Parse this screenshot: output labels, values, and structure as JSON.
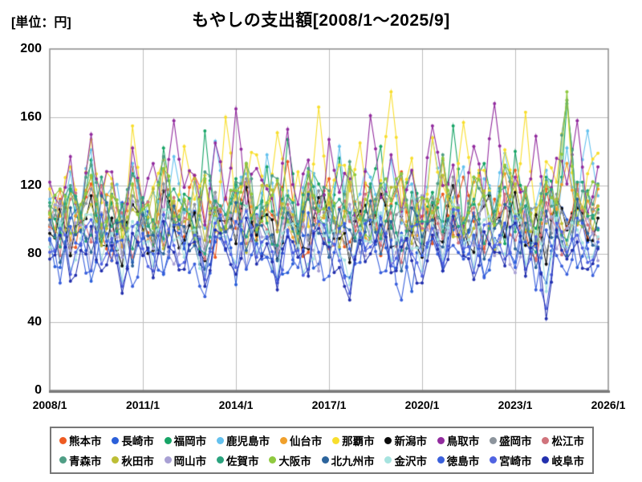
{
  "header": {
    "unit_label": "[単位：円]",
    "title": "もやしの支出額[2008/1～2025/9]"
  },
  "chart_data": {
    "type": "line",
    "title": "もやしの支出額[2008/1～2025/9]",
    "unit": "円",
    "xlabel": "",
    "ylabel": "支出額(円)",
    "ylim": [
      0,
      200
    ],
    "yticks": [
      0,
      40,
      80,
      120,
      160,
      200
    ],
    "xticks": [
      "2008/1",
      "2011/1",
      "2014/1",
      "2017/1",
      "2020/1",
      "2023/1",
      "2026/1"
    ],
    "x_start": "2008/1",
    "x_end": "2025/9",
    "x_axis_end": "2026/1",
    "x_step_months": 4,
    "grid": true,
    "legend_position": "bottom",
    "colors": {
      "grid": "#bdbdbd",
      "axis": "#8c8c8c",
      "baseline": "#7a7a7a"
    },
    "series": [
      {
        "name": "熊本市",
        "color": "#EE5B22",
        "values": [
          96,
          112,
          84,
          103,
          121,
          92,
          76,
          108,
          131,
          98,
          85,
          117,
          104,
          90,
          126,
          99,
          78,
          113,
          95,
          122,
          88,
          106,
          97,
          134,
          92,
          81,
          110,
          124,
          96,
          87,
          103,
          118,
          79,
          109,
          128,
          94,
          102,
          86,
          115,
          91,
          125,
          99,
          83,
          112,
          107,
          129,
          93,
          77,
          118,
          104,
          96,
          121,
          89,
          108
        ]
      },
      {
        "name": "長崎市",
        "color": "#2B5FD9",
        "values": [
          88,
          72,
          101,
          93,
          64,
          97,
          82,
          110,
          75,
          89,
          99,
          68,
          94,
          83,
          105,
          71,
          87,
          96,
          62,
          90,
          103,
          78,
          85,
          69,
          98,
          91,
          74,
          107,
          83,
          66,
          95,
          88,
          102,
          73,
          92,
          58,
          86,
          99,
          70,
          94,
          81,
          104,
          67,
          89,
          97,
          75,
          108,
          84,
          63,
          93,
          100,
          72,
          87,
          95
        ]
      },
      {
        "name": "福岡市",
        "color": "#17A466",
        "values": [
          104,
          92,
          118,
          99,
          135,
          87,
          110,
          96,
          127,
          103,
          84,
          142,
          97,
          115,
          89,
          152,
          101,
          93,
          124,
          108,
          86,
          131,
          98,
          147,
          94,
          112,
          121,
          88,
          136,
          100,
          90,
          119,
          143,
          95,
          107,
          128,
          84,
          116,
          99,
          155,
          92,
          109,
          133,
          97,
          86,
          140,
          113,
          95,
          125,
          102,
          168,
          98,
          117,
          106
        ]
      },
      {
        "name": "鹿児島市",
        "color": "#64C1EE",
        "values": [
          112,
          97,
          128,
          105,
          141,
          93,
          119,
          102,
          133,
          96,
          116,
          88,
          137,
          104,
          122,
          95,
          146,
          99,
          110,
          127,
          91,
          138,
          103,
          117,
          94,
          130,
          108,
          85,
          143,
          101,
          115,
          125,
          92,
          135,
          98,
          121,
          107,
          148,
          96,
          113,
          131,
          89,
          124,
          103,
          139,
          97,
          118,
          109,
          129,
          95,
          142,
          106,
          152,
          114
        ]
      },
      {
        "name": "仙台市",
        "color": "#F0A02C",
        "values": [
          101,
          117,
          88,
          109,
          125,
          95,
          113,
          84,
          120,
          103,
          92,
          129,
          99,
          111,
          86,
          123,
          105,
          94,
          116,
          132,
          90,
          107,
          121,
          97,
          83,
          126,
          102,
          114,
          93,
          130,
          100,
          87,
          119,
          108,
          124,
          91,
          112,
          98,
          135,
          104,
          89,
          122,
          110,
          96,
          127,
          101,
          115,
          85,
          120,
          106,
          133,
          97,
          111,
          118
        ]
      },
      {
        "name": "那覇市",
        "color": "#F8DE2D",
        "values": [
          118,
          102,
          131,
          95,
          147,
          110,
          124,
          90,
          155,
          107,
          119,
          135,
          98,
          143,
          112,
          126,
          93,
          160,
          105,
          121,
          138,
          99,
          151,
          114,
          128,
          96,
          166,
          109,
          132,
          117,
          145,
          101,
          123,
          175,
          108,
          136,
          94,
          148,
          120,
          104,
          157,
          111,
          129,
          97,
          141,
          116,
          163,
          103,
          134,
          122,
          170,
          106,
          127,
          139
        ]
      },
      {
        "name": "新潟市",
        "color": "#0A0A0A",
        "values": [
          92,
          106,
          79,
          98,
          114,
          85,
          101,
          73,
          109,
          94,
          82,
          117,
          96,
          88,
          104,
          76,
          111,
          99,
          86,
          119,
          91,
          103,
          77,
          107,
          95,
          83,
          113,
          100,
          89,
          75,
          105,
          97,
          115,
          84,
          102,
          93,
          78,
          110,
          87,
          120,
          96,
          81,
          108,
          99,
          90,
          116,
          85,
          103,
          74,
          112,
          94,
          107,
          88,
          101
        ]
      },
      {
        "name": "鳥取市",
        "color": "#922B9E",
        "values": [
          122,
          108,
          137,
          99,
          150,
          115,
          128,
          95,
          142,
          110,
          133,
          103,
          158,
          119,
          126,
          97,
          145,
          112,
          165,
          106,
          130,
          118,
          94,
          153,
          109,
          135,
          100,
          147,
          116,
          124,
          91,
          161,
          113,
          138,
          105,
          129,
          98,
          155,
          120,
          132,
          96,
          143,
          111,
          168,
          107,
          125,
          117,
          149,
          102,
          136,
          121,
          158,
          104,
          131
        ]
      },
      {
        "name": "盛岡市",
        "color": "#8C949C",
        "values": [
          97,
          111,
          85,
          104,
          118,
          92,
          107,
          80,
          114,
          98,
          87,
          121,
          101,
          93,
          109,
          83,
          116,
          103,
          90,
          124,
          95,
          108,
          82,
          112,
          99,
          88,
          117,
          105,
          94,
          79,
          110,
          102,
          119,
          89,
          106,
          97,
          84,
          113,
          91,
          125,
          100,
          86,
          111,
          103,
          95,
          120,
          88,
          107,
          81,
          115,
          98,
          109,
          92,
          104
        ]
      },
      {
        "name": "松江市",
        "color": "#D0737C",
        "values": [
          105,
          79,
          112,
          100,
          87,
          120,
          92,
          104,
          78,
          108,
          96,
          85,
          113,
          101,
          90,
          77,
          106,
          98,
          116,
          86,
          102,
          94,
          80,
          109,
          88,
          121,
          97,
          83,
          107,
          99,
          91,
          117,
          85,
          104,
          75,
          111,
          95,
          105,
          89,
          100,
          93,
          107,
          81,
          100,
          115,
          88,
          103,
          76,
          110,
          95,
          84,
          118,
          97,
          89
        ]
      },
      {
        "name": "青森市",
        "color": "#4F9E85",
        "values": [
          108,
          94,
          120,
          101,
          132,
          90,
          115,
          98,
          126,
          104,
          92,
          137,
          99,
          111,
          87,
          128,
          106,
          95,
          122,
          133,
          93,
          109,
          124,
          100,
          86,
          130,
          105,
          117,
          96,
          134,
          102,
          89,
          121,
          112,
          127,
          94,
          114,
          100,
          138,
          107,
          92,
          125,
          113,
          98,
          131,
          103,
          118,
          88,
          123,
          109,
          170,
          99,
          116,
          121
        ]
      },
      {
        "name": "秋田市",
        "color": "#BDBE35",
        "values": [
          103,
          89,
          116,
          97,
          109,
          85,
          121,
          94,
          106,
          92,
          118,
          83,
          111,
          99,
          124,
          88,
          102,
          95,
          114,
          81,
          107,
          120,
          93,
          105,
          87,
          116,
          98,
          110,
          84,
          122,
          96,
          108,
          91,
          119,
          100,
          86,
          113,
          104,
          126,
          90,
          101,
          95,
          117,
          82,
          109,
          121,
          94,
          106,
          98,
          112,
          85,
          115,
          103,
          108
        ]
      },
      {
        "name": "岡山市",
        "color": "#A8A0D4",
        "values": [
          94,
          108,
          82,
          97,
          71,
          104,
          89,
          78,
          111,
          91,
          83,
          99,
          74,
          106,
          93,
          80,
          113,
          86,
          98,
          72,
          102,
          90,
          79,
          107,
          95,
          84,
          70,
          100,
          92,
          109,
          81,
          96,
          88,
          75,
          103,
          82,
          114,
          91,
          77,
          105,
          93,
          85,
          110,
          79,
          98,
          69,
          106,
          89,
          99,
          83,
          95,
          87,
          101,
          76
        ]
      },
      {
        "name": "佐賀市",
        "color": "#2AA37E",
        "values": [
          110,
          84,
          117,
          104,
          91,
          125,
          96,
          109,
          83,
          113,
          100,
          89,
          118,
          106,
          95,
          80,
          111,
          103,
          120,
          90,
          107,
          98,
          85,
          114,
          92,
          126,
          101,
          87,
          112,
          104,
          96,
          121,
          89,
          108,
          82,
          116,
          99,
          110,
          93,
          105,
          98,
          112,
          86,
          105,
          119,
          93,
          108,
          81,
          115,
          99,
          88,
          122,
          102,
          94
        ]
      },
      {
        "name": "大阪市",
        "color": "#8FC93F",
        "values": [
          104,
          118,
          92,
          109,
          126,
          97,
          114,
          88,
          121,
          106,
          95,
          130,
          102,
          112,
          90,
          124,
          107,
          96,
          117,
          133,
          94,
          110,
          123,
          99,
          86,
          128,
          105,
          115,
          93,
          131,
          101,
          89,
          120,
          111,
          127,
          95,
          113,
          100,
          136,
          108,
          92,
          125,
          114,
          97,
          132,
          103,
          119,
          87,
          122,
          110,
          175,
          98,
          115,
          120
        ]
      },
      {
        "name": "北九州市",
        "color": "#2C649C",
        "values": [
          100,
          75,
          107,
          94,
          81,
          114,
          87,
          99,
          73,
          103,
          91,
          80,
          108,
          96,
          85,
          71,
          101,
          93,
          110,
          82,
          97,
          89,
          76,
          104,
          83,
          115,
          92,
          78,
          106,
          94,
          86,
          111,
          80,
          99,
          70,
          107,
          90,
          100,
          84,
          96,
          88,
          102,
          77,
          95,
          109,
          83,
          98,
          72,
          105,
          90,
          79,
          112,
          92,
          84
        ]
      },
      {
        "name": "金沢市",
        "color": "#A6E3DF",
        "values": [
          84,
          98,
          71,
          89,
          103,
          77,
          92,
          64,
          99,
          86,
          73,
          106,
          88,
          78,
          94,
          68,
          101,
          90,
          75,
          108,
          81,
          93,
          66,
          97,
          85,
          74,
          102,
          91,
          79,
          62,
          95,
          87,
          104,
          76,
          91,
          83,
          70,
          98,
          77,
          109,
          86,
          72,
          100,
          88,
          80,
          105,
          74,
          93,
          58,
          101,
          84,
          94,
          78,
          90
        ]
      },
      {
        "name": "徳島市",
        "color": "#3A60DC",
        "values": [
          89,
          63,
          96,
          85,
          70,
          103,
          76,
          88,
          61,
          92,
          80,
          69,
          97,
          86,
          74,
          55,
          90,
          82,
          99,
          71,
          86,
          78,
          65,
          93,
          72,
          104,
          81,
          67,
          95,
          83,
          75,
          100,
          69,
          88,
          53,
          96,
          79,
          89,
          73,
          85,
          77,
          91,
          66,
          84,
          98,
          72,
          87,
          59,
          94,
          79,
          68,
          101,
          83,
          73
        ]
      },
      {
        "name": "宮崎市",
        "color": "#5063E2",
        "values": [
          81,
          95,
          68,
          86,
          100,
          74,
          89,
          61,
          96,
          83,
          70,
          103,
          85,
          75,
          91,
          65,
          98,
          87,
          72,
          105,
          78,
          90,
          63,
          94,
          82,
          71,
          99,
          88,
          76,
          57,
          92,
          84,
          101,
          73,
          88,
          80,
          67,
          95,
          74,
          106,
          83,
          69,
          97,
          85,
          77,
          102,
          71,
          90,
          48,
          98,
          81,
          91,
          75,
          87
        ]
      },
      {
        "name": "岐阜市",
        "color": "#2330AE",
        "values": [
          77,
          91,
          64,
          82,
          96,
          70,
          85,
          57,
          92,
          79,
          66,
          99,
          81,
          71,
          87,
          61,
          94,
          83,
          68,
          101,
          74,
          86,
          59,
          90,
          78,
          67,
          95,
          84,
          72,
          53,
          88,
          80,
          97,
          69,
          84,
          76,
          63,
          91,
          70,
          102,
          79,
          65,
          93,
          81,
          73,
          98,
          67,
          86,
          42,
          94,
          77,
          87,
          71,
          83
        ]
      }
    ]
  }
}
